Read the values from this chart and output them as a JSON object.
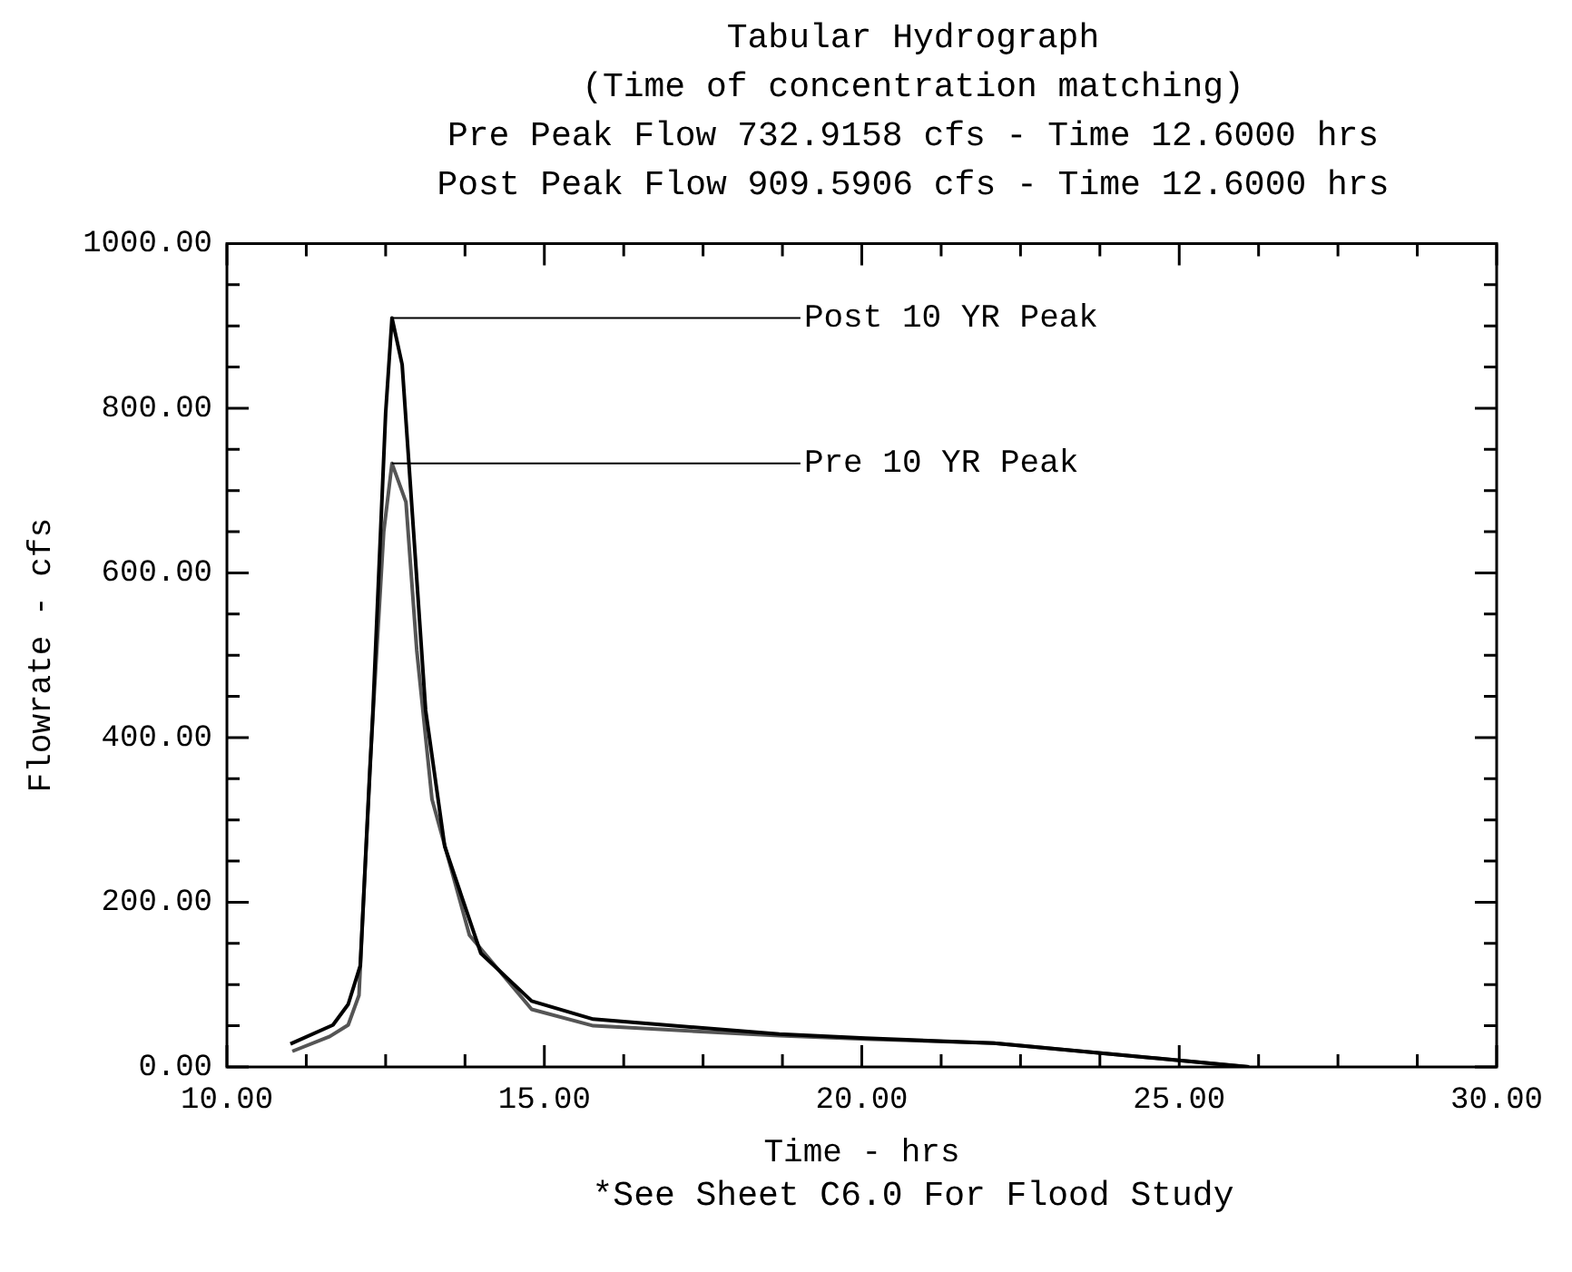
{
  "chart_data": {
    "type": "line",
    "title": "Tabular Hydrograph",
    "subtitle": "(Time of concentration matching)",
    "xlabel": "Time - hrs",
    "ylabel": "Flowrate - cfs",
    "annotations": [
      "Pre Peak Flow 732.9158 cfs - Time 12.6000 hrs",
      "Post Peak Flow 909.5906 cfs - Time 12.6000 hrs",
      {
        "text": "Post 10 YR Peak",
        "x": 12.6,
        "y": 909.5906
      },
      {
        "text": "Pre 10 YR Peak",
        "x": 12.6,
        "y": 732.9158
      },
      "*See Sheet C6.0 For Flood Study"
    ],
    "series": [
      {
        "color": "#000000",
        "x": [
          11.0,
          11.67,
          11.91,
          12.1,
          12.3,
          12.5,
          12.6,
          12.76,
          12.94,
          13.13,
          13.43,
          14.0,
          14.8,
          15.77,
          18.7,
          20.06,
          22.08,
          26.1
        ],
        "values": [
          28,
          51,
          76,
          123,
          433,
          794,
          909.5906,
          853,
          650,
          433,
          268,
          138,
          80,
          58,
          40,
          35,
          29,
          0
        ]
      },
      {
        "color": "#555555",
        "x": [
          11.03,
          11.62,
          11.91,
          12.08,
          12.25,
          12.47,
          12.6,
          12.82,
          12.99,
          13.23,
          13.82,
          14.8,
          15.77,
          18.7,
          20.06,
          22.08,
          26.1
        ],
        "values": [
          19,
          37,
          51,
          87,
          361,
          650,
          732.9158,
          686,
          506,
          325,
          160,
          70,
          50,
          38,
          34,
          29,
          0
        ]
      }
    ],
    "xlim": [
      10,
      30
    ],
    "xticks": [
      {
        "value": 10,
        "label": "10.00"
      },
      {
        "value": 11.25,
        "label": null
      },
      {
        "value": 12.5,
        "label": null
      },
      {
        "value": 13.75,
        "label": null
      },
      {
        "value": 15,
        "label": "15.00"
      },
      {
        "value": 16.25,
        "label": null
      },
      {
        "value": 17.5,
        "label": null
      },
      {
        "value": 18.75,
        "label": null
      },
      {
        "value": 20,
        "label": "20.00"
      },
      {
        "value": 21.25,
        "label": null
      },
      {
        "value": 22.5,
        "label": null
      },
      {
        "value": 23.75,
        "label": null
      },
      {
        "value": 25,
        "label": "25.00"
      },
      {
        "value": 26.25,
        "label": null
      },
      {
        "value": 27.5,
        "label": null
      },
      {
        "value": 28.75,
        "label": null
      },
      {
        "value": 30,
        "label": "30.00"
      }
    ],
    "ylim": [
      0,
      1000
    ],
    "yticks": [
      {
        "value": 0,
        "label": "0.00"
      },
      {
        "value": 50,
        "label": null
      },
      {
        "value": 100,
        "label": null
      },
      {
        "value": 150,
        "label": null
      },
      {
        "value": 200,
        "label": "200.00"
      },
      {
        "value": 250,
        "label": null
      },
      {
        "value": 300,
        "label": null
      },
      {
        "value": 350,
        "label": null
      },
      {
        "value": 400,
        "label": "400.00"
      },
      {
        "value": 450,
        "label": null
      },
      {
        "value": 500,
        "label": null
      },
      {
        "value": 550,
        "label": null
      },
      {
        "value": 600,
        "label": "600.00"
      },
      {
        "value": 650,
        "label": null
      },
      {
        "value": 700,
        "label": null
      },
      {
        "value": 750,
        "label": null
      },
      {
        "value": 800,
        "label": "800.00"
      },
      {
        "value": 850,
        "label": null
      },
      {
        "value": 900,
        "label": null
      },
      {
        "value": 950,
        "label": null
      },
      {
        "value": 1000,
        "label": "1000.00"
      }
    ],
    "grid": false,
    "legend": false,
    "marker": "none",
    "line_style": "solid"
  }
}
